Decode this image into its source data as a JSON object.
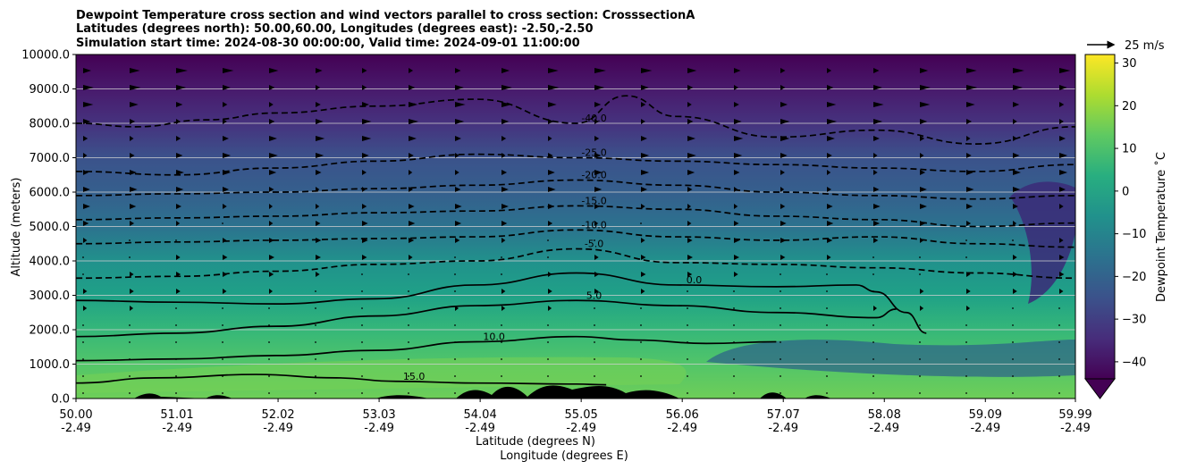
{
  "chart_data": {
    "type": "heatmap",
    "title_lines": [
      "Dewpoint Temperature cross section and wind vectors parallel to cross section: CrosssectionA",
      "Latitudes (degrees north): 50.00,60.00, Longitudes (degrees east): -2.50,-2.50",
      "Simulation start time: 2024-08-30 00:00:00, Valid time: 2024-09-01 11:00:00"
    ],
    "xlabel_lines": [
      "Latitude (degrees N)",
      "Longitude (degrees E)"
    ],
    "ylabel": "Altitude (meters)",
    "x_ticks": [
      {
        "lat": "50.00",
        "lon": "-2.49"
      },
      {
        "lat": "51.01",
        "lon": "-2.49"
      },
      {
        "lat": "52.02",
        "lon": "-2.49"
      },
      {
        "lat": "53.03",
        "lon": "-2.49"
      },
      {
        "lat": "54.04",
        "lon": "-2.49"
      },
      {
        "lat": "55.05",
        "lon": "-2.49"
      },
      {
        "lat": "56.06",
        "lon": "-2.49"
      },
      {
        "lat": "57.07",
        "lon": "-2.49"
      },
      {
        "lat": "58.08",
        "lon": "-2.49"
      },
      {
        "lat": "59.09",
        "lon": "-2.49"
      },
      {
        "lat": "59.99",
        "lon": "-2.49"
      }
    ],
    "xlim": [
      50.0,
      59.99
    ],
    "y_ticks": [
      "0.0",
      "1000.0",
      "2000.0",
      "3000.0",
      "4000.0",
      "5000.0",
      "6000.0",
      "7000.0",
      "8000.0",
      "9000.0",
      "10000.0"
    ],
    "ylim": [
      0,
      10000
    ],
    "grid": "horizontal",
    "colorbar": {
      "label": "Dewpoint Temperature ˚C",
      "ticks": [
        "−40",
        "−30",
        "−20",
        "−10",
        "0",
        "10",
        "20",
        "30"
      ],
      "range": [
        -44,
        32
      ],
      "colormap": "viridis",
      "extend": "min"
    },
    "wind_key": {
      "label": "25 m/s",
      "value": 25
    },
    "contours": [
      {
        "level": 15,
        "label": "15.0",
        "style": "solid",
        "x": [
          50.0,
          50.8,
          51.8,
          52.6,
          53.2,
          54.0,
          55.0,
          55.3
        ],
        "y": [
          450,
          600,
          700,
          600,
          500,
          450,
          420,
          400
        ]
      },
      {
        "level": 10,
        "label": "10.0",
        "style": "solid",
        "x": [
          50.0,
          51.0,
          52.0,
          53.0,
          54.0,
          55.0,
          55.6,
          56.3,
          57.0
        ],
        "y": [
          1100,
          1150,
          1250,
          1400,
          1650,
          1800,
          1700,
          1600,
          1650
        ]
      },
      {
        "level": 5,
        "label": "5.0",
        "style": "solid",
        "x": [
          50.0,
          51.0,
          52.0,
          53.0,
          54.0,
          55.0,
          56.0,
          57.0,
          58.0,
          58.2
        ],
        "y": [
          1800,
          1900,
          2100,
          2400,
          2700,
          2850,
          2700,
          2500,
          2350,
          2600
        ]
      },
      {
        "level": 0,
        "label": "0.0",
        "style": "solid",
        "x": [
          50.0,
          51.0,
          52.0,
          53.0,
          54.0,
          55.0,
          56.0,
          57.0,
          57.8,
          58.0,
          58.3,
          58.5
        ],
        "y": [
          2850,
          2800,
          2750,
          2900,
          3300,
          3650,
          3300,
          3250,
          3300,
          3100,
          2500,
          1900
        ]
      },
      {
        "level": -5,
        "label": "-5.0",
        "style": "dashed",
        "x": [
          50.0,
          51.0,
          52.0,
          53.0,
          54.0,
          55.0,
          56.0,
          57.0,
          58.0,
          59.0,
          59.99
        ],
        "y": [
          3500,
          3550,
          3700,
          3900,
          4000,
          4350,
          3950,
          3900,
          3800,
          3650,
          3500
        ]
      },
      {
        "level": -10,
        "label": "-10.0",
        "style": "dashed",
        "x": [
          50.0,
          51.0,
          52.0,
          53.0,
          54.0,
          55.0,
          56.0,
          57.0,
          58.0,
          59.0,
          59.99
        ],
        "y": [
          4500,
          4550,
          4600,
          4650,
          4700,
          4900,
          4700,
          4600,
          4700,
          4500,
          4400
        ]
      },
      {
        "level": -15,
        "label": "-15.0",
        "style": "dashed",
        "x": [
          50.0,
          51.0,
          52.0,
          53.0,
          54.0,
          55.0,
          56.0,
          57.0,
          58.0,
          59.0,
          59.99
        ],
        "y": [
          5200,
          5250,
          5300,
          5400,
          5450,
          5600,
          5500,
          5300,
          5200,
          5000,
          5100
        ]
      },
      {
        "level": -20,
        "label": "-20.0",
        "style": "dashed",
        "x": [
          50.0,
          51.0,
          52.0,
          53.0,
          54.0,
          55.0,
          56.0,
          57.0,
          58.0,
          59.0,
          59.99
        ],
        "y": [
          5900,
          5950,
          6000,
          6100,
          6200,
          6350,
          6200,
          6000,
          5900,
          5800,
          5900
        ]
      },
      {
        "level": -25,
        "label": "-25.0",
        "style": "dashed",
        "x": [
          50.0,
          51.0,
          52.0,
          53.0,
          54.0,
          55.0,
          56.0,
          57.0,
          58.0,
          59.0,
          59.99
        ],
        "y": [
          6600,
          6500,
          6700,
          6900,
          7100,
          7000,
          6900,
          6800,
          6700,
          6600,
          6800
        ]
      },
      {
        "level": -40,
        "label": "-40.0",
        "style": "dashed",
        "x": [
          50.0,
          50.6,
          51.3,
          52.0,
          53.0,
          54.0,
          55.0,
          55.5,
          56.0,
          57.0,
          58.0,
          59.0,
          59.99
        ],
        "y": [
          8000,
          7900,
          8100,
          8300,
          8500,
          8700,
          8000,
          8800,
          8200,
          7600,
          7800,
          7400,
          7900
        ]
      }
    ]
  }
}
